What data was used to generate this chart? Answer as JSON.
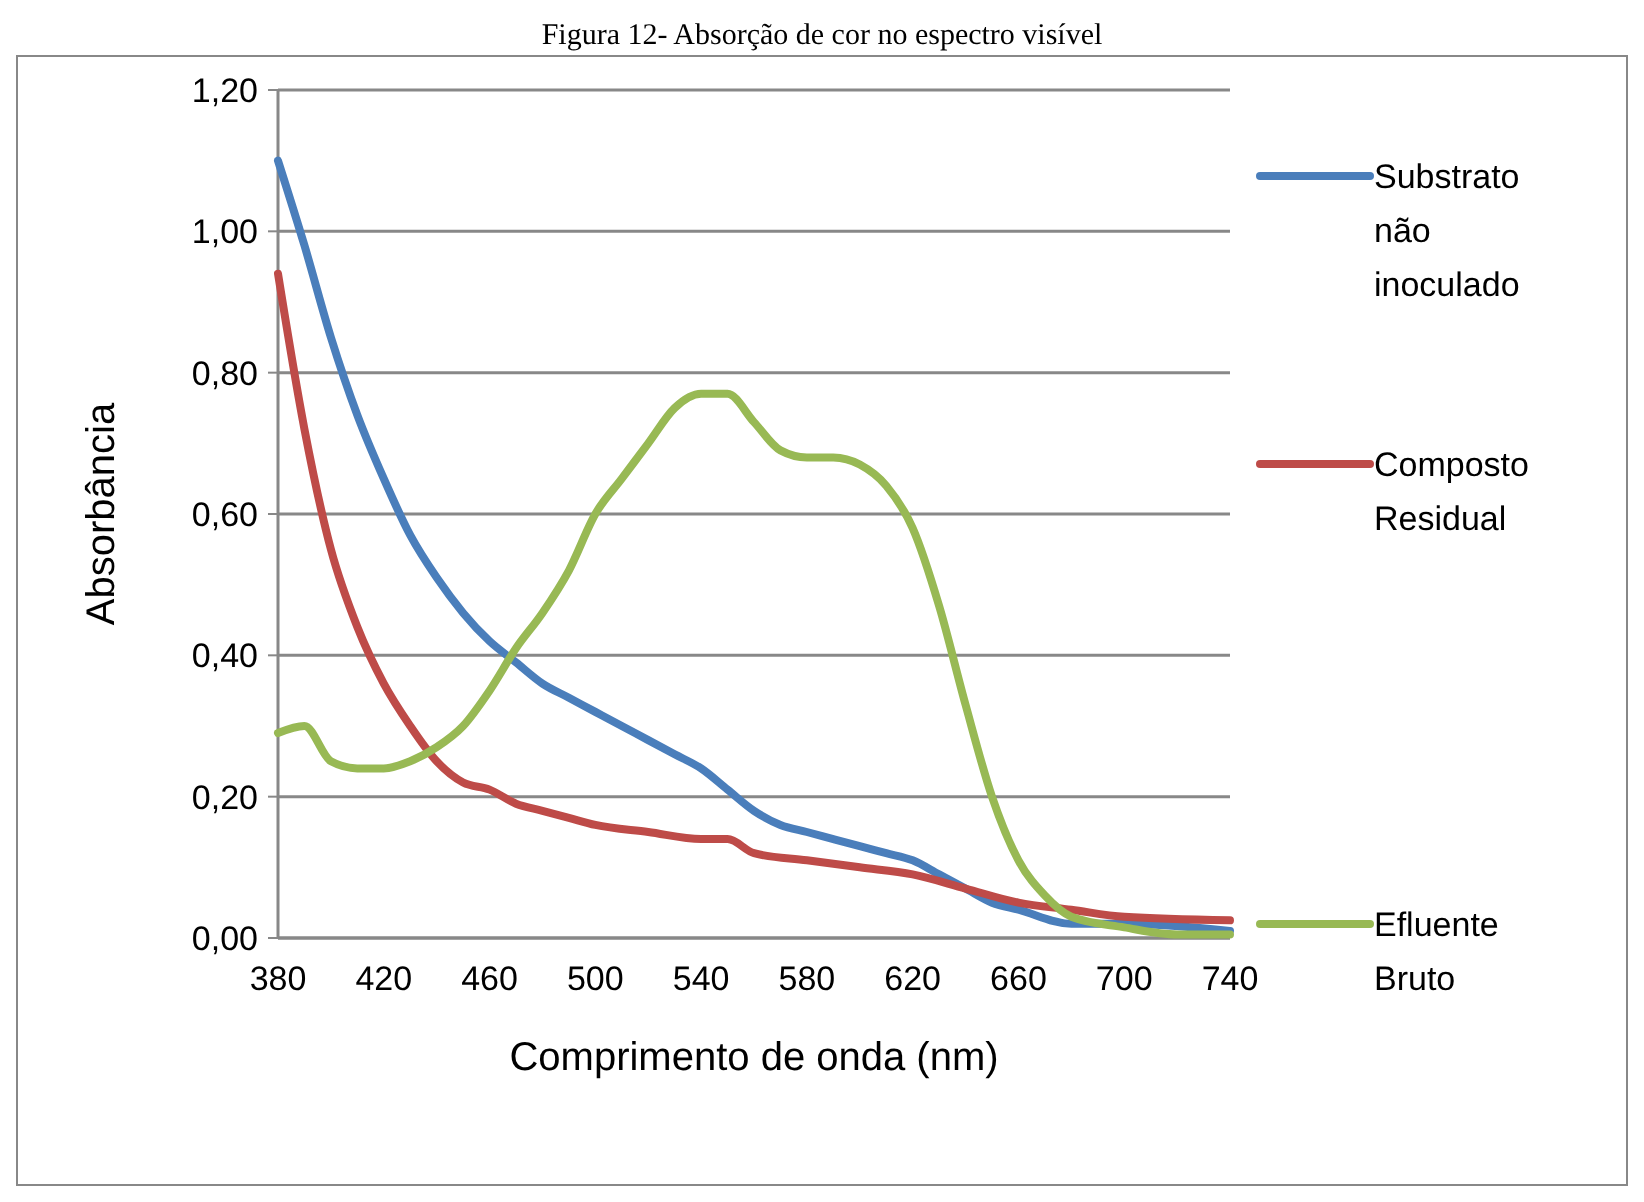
{
  "chart_data": {
    "type": "line",
    "title": "Figura 12- Absorção de cor no espectro visível",
    "xlabel": "Comprimento de onda (nm)",
    "ylabel": "Absorbância",
    "xlim": [
      380,
      740
    ],
    "xticks": [
      380,
      420,
      460,
      500,
      540,
      580,
      620,
      660,
      700,
      740
    ],
    "ylim": [
      0,
      1.2
    ],
    "yticks": [
      {
        "value": 0,
        "label": "0,00"
      },
      {
        "value": 0.2,
        "label": "0,20"
      },
      {
        "value": 0.4,
        "label": "0,40"
      },
      {
        "value": 0.6,
        "label": "0,60"
      },
      {
        "value": 0.8,
        "label": "0,80"
      },
      {
        "value": 1,
        "label": "1,00"
      },
      {
        "value": 1.2,
        "label": "1,20"
      }
    ],
    "grid": "y",
    "legend": "right",
    "marker": "none",
    "line_style": "solid",
    "series": [
      {
        "name": "Substrato não inoculado",
        "color": "#4a7ebb",
        "x": [
          380,
          390,
          400,
          410,
          420,
          430,
          440,
          450,
          460,
          470,
          480,
          490,
          500,
          510,
          520,
          530,
          540,
          550,
          560,
          570,
          580,
          590,
          600,
          610,
          620,
          630,
          640,
          650,
          660,
          680,
          700,
          740
        ],
        "values": [
          1.1,
          0.98,
          0.85,
          0.74,
          0.65,
          0.57,
          0.51,
          0.46,
          0.42,
          0.39,
          0.36,
          0.34,
          0.32,
          0.3,
          0.28,
          0.26,
          0.24,
          0.21,
          0.18,
          0.16,
          0.15,
          0.14,
          0.13,
          0.12,
          0.11,
          0.09,
          0.07,
          0.05,
          0.04,
          0.02,
          0.02,
          0.01
        ]
      },
      {
        "name": "Composto Residual",
        "color": "#be4b48",
        "x": [
          380,
          390,
          400,
          410,
          420,
          430,
          440,
          450,
          460,
          470,
          480,
          490,
          500,
          520,
          540,
          550,
          560,
          580,
          600,
          620,
          640,
          660,
          680,
          700,
          740
        ],
        "values": [
          0.94,
          0.72,
          0.55,
          0.44,
          0.36,
          0.3,
          0.25,
          0.22,
          0.21,
          0.19,
          0.18,
          0.17,
          0.16,
          0.15,
          0.14,
          0.14,
          0.12,
          0.11,
          0.1,
          0.09,
          0.07,
          0.05,
          0.04,
          0.03,
          0.025
        ]
      },
      {
        "name": "Efluente Bruto",
        "color": "#98b954",
        "x": [
          380,
          390,
          400,
          410,
          420,
          430,
          440,
          450,
          460,
          470,
          480,
          490,
          500,
          510,
          520,
          530,
          540,
          550,
          560,
          570,
          580,
          590,
          600,
          610,
          620,
          630,
          640,
          650,
          660,
          670,
          680,
          700,
          720,
          740
        ],
        "values": [
          0.29,
          0.3,
          0.25,
          0.24,
          0.24,
          0.25,
          0.27,
          0.3,
          0.35,
          0.41,
          0.46,
          0.52,
          0.6,
          0.65,
          0.7,
          0.75,
          0.77,
          0.77,
          0.73,
          0.69,
          0.68,
          0.68,
          0.67,
          0.64,
          0.58,
          0.47,
          0.33,
          0.2,
          0.11,
          0.06,
          0.03,
          0.015,
          0.005,
          0.005
        ]
      }
    ]
  }
}
